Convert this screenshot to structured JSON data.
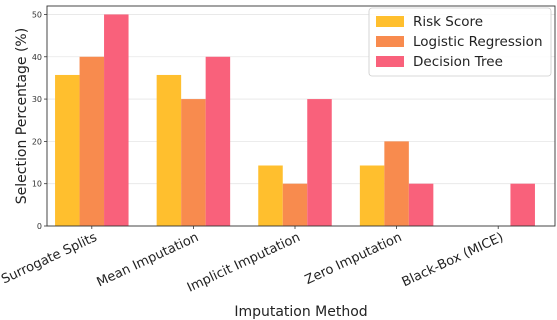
{
  "chart_data": {
    "type": "bar",
    "categories": [
      "Surrogate Splits",
      "Mean Imputation",
      "Implicit Imputation",
      "Zero Imputation",
      "Black-Box (MICE)"
    ],
    "series": [
      {
        "name": "Risk Score",
        "color": "#FFBF2E",
        "values": [
          35.7,
          35.7,
          14.3,
          14.3,
          0
        ]
      },
      {
        "name": "Logistic Regression",
        "color": "#F88B4E",
        "values": [
          40,
          30,
          10,
          20,
          0
        ]
      },
      {
        "name": "Decision Tree",
        "color": "#F9617B",
        "values": [
          50,
          40,
          30,
          10,
          10
        ]
      }
    ],
    "xlabel": "Imputation Method",
    "ylabel": "Selection Percentage (%)",
    "ylim": [
      0,
      52
    ],
    "yticks": [
      0,
      10,
      20,
      30,
      40,
      50
    ],
    "grid": true,
    "legend_position": "top-right"
  }
}
